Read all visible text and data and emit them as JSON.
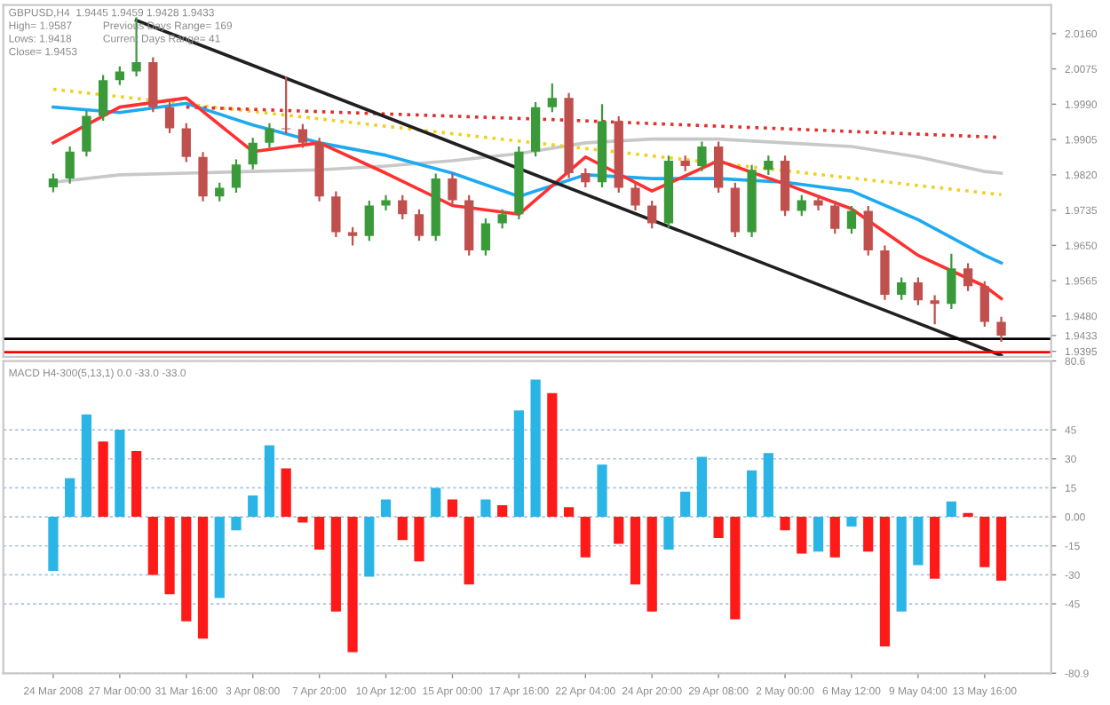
{
  "chart_data": [
    {
      "type": "candlestick",
      "annotations": [
        "GBPUSD,H4  1.9445 1.9459 1.9428 1.9433",
        "High= 1.9587",
        "Previous Days Range= 169",
        "Lows: 1.9418",
        "Current Days Range= 41",
        "Close= 1.9453"
      ],
      "categories": [
        null,
        null,
        null,
        null,
        null,
        null,
        null,
        null,
        null,
        null,
        null,
        null,
        null,
        null,
        null,
        null,
        null,
        null,
        null,
        null,
        null,
        null,
        null,
        null,
        null,
        null,
        null,
        null,
        null,
        null,
        null,
        null,
        null,
        null,
        null,
        null,
        null,
        null,
        null,
        null,
        null,
        null,
        null,
        null,
        null,
        null,
        null,
        null,
        null,
        null,
        null,
        null,
        null,
        null,
        null,
        null,
        null,
        null
      ],
      "ohlc": [
        [
          1.979,
          1.9823,
          1.9778,
          1.9811
        ],
        [
          1.9811,
          1.9888,
          1.9799,
          1.9876
        ],
        [
          1.9876,
          1.9974,
          1.9864,
          1.9962
        ],
        [
          1.9962,
          2.006,
          1.995,
          2.0048
        ],
        [
          2.0048,
          2.0081,
          2.0036,
          2.0069
        ],
        [
          2.0069,
          2.0199,
          2.0057,
          2.0091
        ],
        [
          2.0091,
          2.0103,
          1.9971,
          1.9983
        ],
        [
          1.9983,
          1.9995,
          1.992,
          1.9932
        ],
        [
          1.9932,
          1.9944,
          1.9851,
          1.9863
        ],
        [
          1.9863,
          1.9875,
          1.9756,
          1.9768
        ],
        [
          1.9768,
          1.9801,
          1.9756,
          1.9789
        ],
        [
          1.9789,
          1.9857,
          1.9777,
          1.9845
        ],
        [
          1.9845,
          1.9909,
          1.9833,
          1.9897
        ],
        [
          1.9897,
          1.9944,
          1.9885,
          1.9932
        ],
        [
          1.9932,
          2.0057,
          1.9918,
          1.993
        ],
        [
          1.993,
          1.9942,
          1.9885,
          1.9897
        ],
        [
          1.9897,
          1.9909,
          1.9756,
          1.9768
        ],
        [
          1.9768,
          1.978,
          1.967,
          1.9682
        ],
        [
          1.9682,
          1.9694,
          1.965,
          1.9673
        ],
        [
          1.9673,
          1.9758,
          1.9661,
          1.9746
        ],
        [
          1.9746,
          1.9771,
          1.9734,
          1.9759
        ],
        [
          1.9759,
          1.9771,
          1.9713,
          1.9725
        ],
        [
          1.9725,
          1.9737,
          1.9661,
          1.9673
        ],
        [
          1.9673,
          1.9823,
          1.9661,
          1.9811
        ],
        [
          1.9811,
          1.9823,
          1.9747,
          1.9759
        ],
        [
          1.9759,
          1.9771,
          1.9626,
          1.9638
        ],
        [
          1.9638,
          1.9715,
          1.9626,
          1.9703
        ],
        [
          1.9703,
          1.9737,
          1.9691,
          1.9725
        ],
        [
          1.9725,
          1.9888,
          1.9713,
          1.9876
        ],
        [
          1.9876,
          1.9995,
          1.9864,
          1.9983
        ],
        [
          1.9983,
          2.004,
          1.9971,
          2.0005
        ],
        [
          2.0005,
          2.0017,
          1.9812,
          1.9824
        ],
        [
          1.9824,
          1.9836,
          1.979,
          1.9802
        ],
        [
          1.9802,
          1.999,
          1.979,
          1.9949
        ],
        [
          1.9949,
          1.9961,
          1.9777,
          1.9789
        ],
        [
          1.9789,
          1.9801,
          1.9734,
          1.9746
        ],
        [
          1.9746,
          1.9758,
          1.9691,
          1.9703
        ],
        [
          1.9703,
          1.9866,
          1.9691,
          1.9854
        ],
        [
          1.9854,
          1.9866,
          1.9829,
          1.9841
        ],
        [
          1.9841,
          1.99,
          1.9829,
          1.9888
        ],
        [
          1.9888,
          1.99,
          1.9777,
          1.9789
        ],
        [
          1.9789,
          1.9801,
          1.967,
          1.9682
        ],
        [
          1.9682,
          1.9844,
          1.967,
          1.9832
        ],
        [
          1.9832,
          1.9866,
          1.982,
          1.9854
        ],
        [
          1.9854,
          1.9866,
          1.9721,
          1.9733
        ],
        [
          1.9733,
          1.9771,
          1.9721,
          1.9759
        ],
        [
          1.9759,
          1.9771,
          1.9734,
          1.9746
        ],
        [
          1.9746,
          1.9758,
          1.9678,
          1.969
        ],
        [
          1.969,
          1.9745,
          1.9678,
          1.9733
        ],
        [
          1.9733,
          1.9745,
          1.9626,
          1.9638
        ],
        [
          1.9638,
          1.965,
          1.9519,
          1.9531
        ],
        [
          1.9531,
          1.9573,
          1.9519,
          1.9561
        ],
        [
          1.9561,
          1.9573,
          1.9506,
          1.9518
        ],
        [
          1.9518,
          1.953,
          1.946,
          1.9509
        ],
        [
          1.9509,
          1.963,
          1.9497,
          1.9595
        ],
        [
          1.9595,
          1.9607,
          1.954,
          1.9552
        ],
        [
          1.9552,
          1.9564,
          1.9454,
          1.9466
        ],
        [
          1.9466,
          1.9478,
          1.9418,
          1.9433
        ]
      ],
      "colors": [
        "#3a9a3a",
        "#3a9a3a",
        "#3a9a3a",
        "#3a9a3a",
        "#3a9a3a",
        "#3a9a3a",
        "#c0504d",
        "#c0504d",
        "#c0504d",
        "#c0504d",
        "#3a9a3a",
        "#3a9a3a",
        "#3a9a3a",
        "#3a9a3a",
        "#c0504d",
        "#c0504d",
        "#c0504d",
        "#c0504d",
        "#c0504d",
        "#3a9a3a",
        "#3a9a3a",
        "#c0504d",
        "#c0504d",
        "#3a9a3a",
        "#c0504d",
        "#c0504d",
        "#3a9a3a",
        "#3a9a3a",
        "#3a9a3a",
        "#3a9a3a",
        "#3a9a3a",
        "#c0504d",
        "#c0504d",
        "#3a9a3a",
        "#c0504d",
        "#c0504d",
        "#c0504d",
        "#3a9a3a",
        "#c0504d",
        "#3a9a3a",
        "#c0504d",
        "#c0504d",
        "#3a9a3a",
        "#3a9a3a",
        "#c0504d",
        "#3a9a3a",
        "#c0504d",
        "#c0504d",
        "#3a9a3a",
        "#c0504d",
        "#c0504d",
        "#3a9a3a",
        "#c0504d",
        "#c0504d",
        "#3a9a3a",
        "#c0504d",
        "#c0504d",
        "#c0504d"
      ],
      "series": [
        {
          "type": "line",
          "color": "#c8c8c8",
          "values": [
            1.9802,
            null,
            null,
            null,
            1.982,
            null,
            null,
            null,
            1.9824,
            null,
            null,
            null,
            1.9828,
            null,
            null,
            null,
            1.9832,
            null,
            null,
            null,
            1.9841,
            null,
            null,
            null,
            1.9854,
            null,
            null,
            null,
            1.9871,
            null,
            null,
            null,
            1.9897,
            null,
            null,
            null,
            1.9906,
            null,
            null,
            null,
            1.9906,
            null,
            null,
            null,
            1.9897,
            null,
            null,
            null,
            1.9888,
            null,
            null,
            null,
            1.9863,
            null,
            null,
            null,
            1.9828,
            1.9824
          ]
        },
        {
          "type": "line",
          "color": "#f0d020",
          "line_style": "dotted",
          "values": [
            2.0026,
            null,
            null,
            null,
            null,
            null,
            null,
            null,
            null,
            null,
            null,
            null,
            null,
            null,
            null,
            null,
            null,
            null,
            null,
            null,
            null,
            null,
            null,
            null,
            null,
            null,
            null,
            null,
            null,
            null,
            null,
            null,
            null,
            null,
            null,
            null,
            null,
            null,
            null,
            null,
            null,
            null,
            null,
            null,
            null,
            null,
            null,
            null,
            null,
            null,
            null,
            null,
            null,
            null,
            null,
            null,
            null,
            1.9772
          ]
        },
        {
          "type": "line",
          "color": "#e03030",
          "line_style": "dotted",
          "values": [
            null,
            null,
            null,
            null,
            null,
            null,
            null,
            null,
            1.9983,
            null,
            null,
            null,
            null,
            null,
            null,
            null,
            null,
            null,
            null,
            null,
            null,
            null,
            null,
            null,
            null,
            null,
            null,
            null,
            null,
            null,
            1.9953,
            null,
            null,
            null,
            null,
            null,
            null,
            null,
            null,
            null,
            null,
            null,
            null,
            null,
            null,
            null,
            null,
            null,
            null,
            null,
            null,
            null,
            null,
            null,
            null,
            null,
            null,
            1.991
          ]
        },
        {
          "type": "line",
          "color": "#1eaaf0",
          "values": [
            1.9983,
            null,
            null,
            null,
            1.997,
            null,
            null,
            null,
            1.9992,
            null,
            null,
            null,
            1.994,
            null,
            null,
            null,
            1.9897,
            null,
            null,
            null,
            1.9867,
            null,
            null,
            null,
            1.9824,
            null,
            null,
            null,
            1.9768,
            null,
            null,
            null,
            1.982,
            null,
            null,
            null,
            1.9811,
            null,
            null,
            null,
            1.9811,
            null,
            null,
            null,
            1.9802,
            null,
            null,
            null,
            1.9781,
            null,
            null,
            null,
            1.9712,
            null,
            null,
            null,
            1.9626,
            1.9608
          ]
        },
        {
          "type": "line",
          "color": "#ff3030",
          "values": [
            1.9897,
            null,
            null,
            null,
            1.9983,
            null,
            null,
            null,
            2.0005,
            null,
            null,
            null,
            1.9876,
            null,
            null,
            null,
            1.9897,
            null,
            null,
            null,
            1.9824,
            null,
            null,
            null,
            1.9746,
            null,
            null,
            null,
            1.9725,
            null,
            null,
            null,
            1.9863,
            null,
            null,
            null,
            1.9781,
            null,
            null,
            null,
            1.9854,
            null,
            null,
            null,
            1.9798,
            null,
            null,
            null,
            1.9738,
            null,
            null,
            null,
            1.9626,
            null,
            null,
            null,
            1.9552,
            1.9522
          ]
        },
        {
          "type": "line",
          "color": "#202020",
          "values": [
            null,
            null,
            null,
            null,
            null,
            2.0192,
            null,
            null,
            null,
            null,
            null,
            null,
            null,
            null,
            null,
            null,
            null,
            null,
            null,
            null,
            null,
            null,
            null,
            null,
            null,
            null,
            null,
            null,
            null,
            null,
            null,
            null,
            null,
            null,
            null,
            null,
            null,
            null,
            null,
            null,
            null,
            null,
            null,
            null,
            null,
            null,
            null,
            null,
            null,
            null,
            null,
            null,
            null,
            null,
            null,
            null,
            null,
            1.9385
          ]
        }
      ],
      "ref_lines": [
        {
          "axis": "y",
          "value": 1.9425,
          "color": "#000000"
        },
        {
          "axis": "y",
          "value": 1.9393,
          "color": "#ff0000"
        }
      ],
      "ylim": [
        1.9382,
        2.0229
      ],
      "yticks": [
        {
          "value": 2.016,
          "label": "2.0160"
        },
        2.0075,
        {
          "value": 1.999,
          "label": "1.9990"
        },
        1.9905,
        {
          "value": 1.982,
          "label": "1.9820"
        },
        1.9735,
        {
          "value": 1.965,
          "label": "1.9650"
        },
        1.9565,
        {
          "value": 1.948,
          "label": "1.9480"
        },
        1.9433,
        1.9395
      ],
      "tick_labels": "y"
    },
    {
      "type": "bar",
      "title": "MACD H4-300(5,13,1) 0.0 -33.0 -33.0",
      "categories": [
        "24 Mar 2008",
        null,
        null,
        null,
        "27 Mar 00:00",
        null,
        null,
        null,
        "31 Mar 16:00",
        null,
        null,
        null,
        "3 Apr 08:00",
        null,
        null,
        null,
        "7 Apr 20:00",
        null,
        null,
        null,
        "10 Apr 12:00",
        null,
        null,
        null,
        "15 Apr 00:00",
        null,
        null,
        null,
        "17 Apr 16:00",
        null,
        null,
        null,
        "22 Apr 04:00",
        null,
        null,
        null,
        "24 Apr 20:00",
        null,
        null,
        null,
        "29 Apr 08:00",
        null,
        null,
        null,
        "2 May 00:00",
        null,
        null,
        null,
        "6 May 12:00",
        null,
        null,
        null,
        "9 May 04:00",
        null,
        null,
        null,
        "13 May 16:00",
        null
      ],
      "series": [
        {
          "values": [
            -28,
            20,
            53,
            39,
            45,
            34,
            -30,
            -40,
            -54,
            -63,
            -42,
            -7,
            11,
            37,
            25,
            -3,
            -17,
            -49,
            -70,
            -31,
            9,
            -12,
            -23,
            15,
            9,
            -35,
            9,
            6,
            55,
            71,
            64,
            5,
            -21,
            27,
            -14,
            -35,
            -49,
            -17,
            13,
            31,
            -11,
            -53,
            24,
            33,
            -7,
            -19,
            -18,
            -21,
            -5,
            -18,
            -67,
            -49,
            -25,
            -32,
            8,
            2,
            -26,
            -33
          ],
          "colors": [
            "#2bb5e6",
            "#2bb5e6",
            "#2bb5e6",
            "#ff1a1a",
            "#2bb5e6",
            "#ff1a1a",
            "#ff1a1a",
            "#ff1a1a",
            "#ff1a1a",
            "#ff1a1a",
            "#2bb5e6",
            "#2bb5e6",
            "#2bb5e6",
            "#2bb5e6",
            "#ff1a1a",
            "#ff1a1a",
            "#ff1a1a",
            "#ff1a1a",
            "#ff1a1a",
            "#2bb5e6",
            "#2bb5e6",
            "#ff1a1a",
            "#ff1a1a",
            "#2bb5e6",
            "#ff1a1a",
            "#ff1a1a",
            "#2bb5e6",
            "#ff1a1a",
            "#2bb5e6",
            "#2bb5e6",
            "#ff1a1a",
            "#ff1a1a",
            "#ff1a1a",
            "#2bb5e6",
            "#ff1a1a",
            "#ff1a1a",
            "#ff1a1a",
            "#2bb5e6",
            "#2bb5e6",
            "#2bb5e6",
            "#ff1a1a",
            "#ff1a1a",
            "#2bb5e6",
            "#2bb5e6",
            "#ff1a1a",
            "#ff1a1a",
            "#2bb5e6",
            "#ff1a1a",
            "#2bb5e6",
            "#ff1a1a",
            "#ff1a1a",
            "#2bb5e6",
            "#2bb5e6",
            "#ff1a1a",
            "#2bb5e6",
            "#ff1a1a",
            "#ff1a1a",
            "#ff1a1a"
          ]
        }
      ],
      "ylim": [
        -80.9,
        80.6
      ],
      "yticks": [
        80.6,
        45,
        30,
        15,
        {
          "value": 0,
          "label": "0.00"
        },
        -15,
        -30,
        -45,
        -80.9
      ],
      "grid": "y"
    }
  ]
}
